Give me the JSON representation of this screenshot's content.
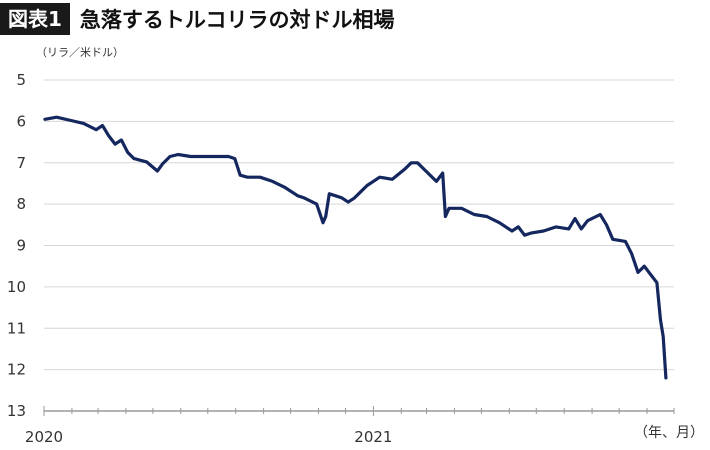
{
  "figure": {
    "badge": "図表1",
    "title": "急落するトルコリラの対ドル相場",
    "unit_label": "（リラ／米ドル）",
    "x_unit_label": "（年、月）"
  },
  "colors": {
    "line": "#14275e",
    "grid": "#d6d6d6",
    "axis": "#9a9a9a",
    "badge_bg": "#1a1a1a"
  },
  "chart_data": {
    "type": "line",
    "title": "急落するトルコリラの対ドル相場",
    "ylabel": "（リラ／米ドル）",
    "xlabel": "（年、月）",
    "ylim": [
      5,
      13
    ],
    "y_inverted": true,
    "y_ticks": [
      5,
      6,
      7,
      8,
      9,
      10,
      11,
      12,
      13
    ],
    "x_range": [
      "2020-01-01",
      "2021-12-01"
    ],
    "x_tick_labels": [
      {
        "date": "2020-01-01",
        "label": "2020"
      },
      {
        "date": "2021-01-01",
        "label": "2021"
      }
    ],
    "grid": true,
    "series": [
      {
        "points": [
          [
            "2020-01-02",
            5.95
          ],
          [
            "2020-01-15",
            5.9
          ],
          [
            "2020-01-31",
            5.98
          ],
          [
            "2020-02-14",
            6.05
          ],
          [
            "2020-02-28",
            6.2
          ],
          [
            "2020-03-06",
            6.1
          ],
          [
            "2020-03-13",
            6.35
          ],
          [
            "2020-03-20",
            6.55
          ],
          [
            "2020-03-27",
            6.45
          ],
          [
            "2020-04-03",
            6.75
          ],
          [
            "2020-04-10",
            6.9
          ],
          [
            "2020-04-24",
            6.98
          ],
          [
            "2020-05-06",
            7.2
          ],
          [
            "2020-05-12",
            7.02
          ],
          [
            "2020-05-20",
            6.85
          ],
          [
            "2020-05-29",
            6.8
          ],
          [
            "2020-06-12",
            6.85
          ],
          [
            "2020-06-26",
            6.85
          ],
          [
            "2020-07-10",
            6.85
          ],
          [
            "2020-07-24",
            6.85
          ],
          [
            "2020-07-31",
            6.9
          ],
          [
            "2020-08-06",
            7.3
          ],
          [
            "2020-08-14",
            7.35
          ],
          [
            "2020-08-28",
            7.35
          ],
          [
            "2020-09-11",
            7.45
          ],
          [
            "2020-09-25",
            7.6
          ],
          [
            "2020-10-09",
            7.8
          ],
          [
            "2020-10-16",
            7.85
          ],
          [
            "2020-10-30",
            8.0
          ],
          [
            "2020-11-06",
            8.45
          ],
          [
            "2020-11-09",
            8.3
          ],
          [
            "2020-11-13",
            7.75
          ],
          [
            "2020-11-20",
            7.8
          ],
          [
            "2020-11-27",
            7.85
          ],
          [
            "2020-12-04",
            7.95
          ],
          [
            "2020-12-11",
            7.85
          ],
          [
            "2020-12-18",
            7.7
          ],
          [
            "2020-12-25",
            7.55
          ],
          [
            "2021-01-08",
            7.35
          ],
          [
            "2021-01-22",
            7.4
          ],
          [
            "2021-02-05",
            7.15
          ],
          [
            "2021-02-12",
            7.0
          ],
          [
            "2021-02-19",
            7.0
          ],
          [
            "2021-02-26",
            7.15
          ],
          [
            "2021-03-12",
            7.45
          ],
          [
            "2021-03-19",
            7.25
          ],
          [
            "2021-03-22",
            8.3
          ],
          [
            "2021-03-26",
            8.1
          ],
          [
            "2021-04-09",
            8.1
          ],
          [
            "2021-04-23",
            8.25
          ],
          [
            "2021-05-07",
            8.3
          ],
          [
            "2021-05-21",
            8.45
          ],
          [
            "2021-06-04",
            8.65
          ],
          [
            "2021-06-11",
            8.55
          ],
          [
            "2021-06-18",
            8.75
          ],
          [
            "2021-06-25",
            8.7
          ],
          [
            "2021-07-09",
            8.65
          ],
          [
            "2021-07-23",
            8.55
          ],
          [
            "2021-08-06",
            8.6
          ],
          [
            "2021-08-13",
            8.35
          ],
          [
            "2021-08-20",
            8.6
          ],
          [
            "2021-08-27",
            8.4
          ],
          [
            "2021-09-10",
            8.25
          ],
          [
            "2021-09-17",
            8.5
          ],
          [
            "2021-09-24",
            8.85
          ],
          [
            "2021-10-08",
            8.9
          ],
          [
            "2021-10-15",
            9.2
          ],
          [
            "2021-10-22",
            9.65
          ],
          [
            "2021-10-29",
            9.5
          ],
          [
            "2021-11-05",
            9.7
          ],
          [
            "2021-11-12",
            9.9
          ],
          [
            "2021-11-16",
            10.8
          ],
          [
            "2021-11-19",
            11.2
          ],
          [
            "2021-11-22",
            12.2
          ]
        ]
      }
    ]
  }
}
